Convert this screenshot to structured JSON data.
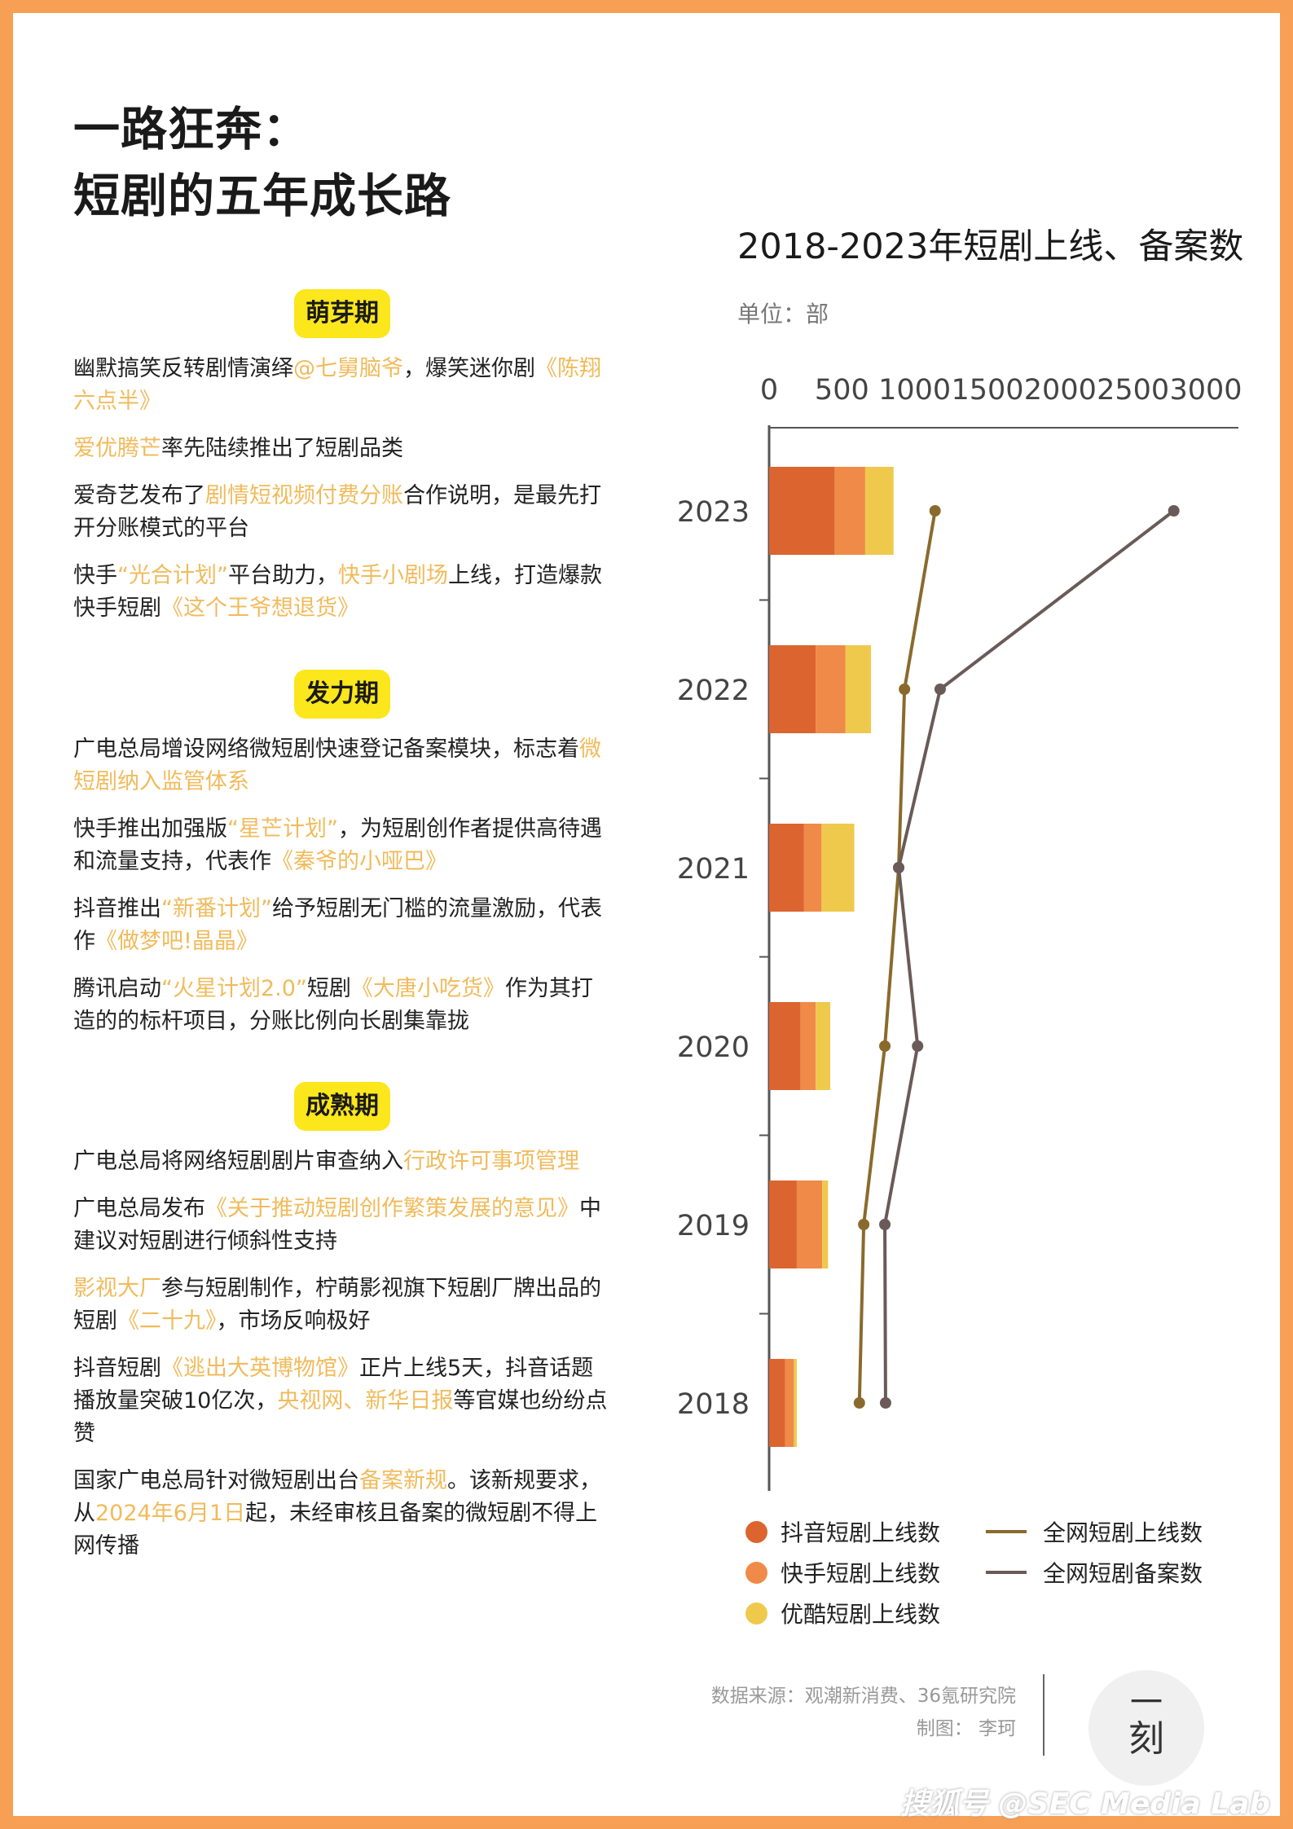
{
  "title": {
    "line1": "一路狂奔：",
    "line2": "短剧的五年成长路"
  },
  "sections": [
    {
      "label": "萌芽期",
      "items": [
        [
          {
            "t": "幽默搞笑反转剧情演绎"
          },
          {
            "t": "@七舅脑爷",
            "h": true
          },
          {
            "t": "，爆笑迷你剧"
          },
          {
            "t": "《陈翔六点半》",
            "h": true
          }
        ],
        [
          {
            "t": "爱优腾芒",
            "h": true
          },
          {
            "t": "率先陆续推出了短剧品类"
          }
        ],
        [
          {
            "t": "爱奇艺发布了"
          },
          {
            "t": "剧情短视频付费分账",
            "h": true
          },
          {
            "t": "合作说明，是最先打开分账模式的平台"
          }
        ],
        [
          {
            "t": "快手"
          },
          {
            "t": "“光合计划”",
            "h": true
          },
          {
            "t": "平台助力，"
          },
          {
            "t": "快手小剧场",
            "h": true
          },
          {
            "t": "上线，打造爆款快手短剧"
          },
          {
            "t": "《这个王爷想退货》",
            "h": true
          }
        ]
      ]
    },
    {
      "label": "发力期",
      "items": [
        [
          {
            "t": "广电总局增设网络微短剧快速登记备案模块，标志着"
          },
          {
            "t": "微短剧纳入监管体系",
            "h": true
          }
        ],
        [
          {
            "t": "快手推出加强版"
          },
          {
            "t": "“星芒计划”",
            "h": true
          },
          {
            "t": "，为短剧创作者提供高待遇和流量支持，代表作"
          },
          {
            "t": "《秦爷的小哑巴》",
            "h": true
          }
        ],
        [
          {
            "t": "抖音推出"
          },
          {
            "t": "“新番计划”",
            "h": true
          },
          {
            "t": "给予短剧无门槛的流量激励，代表作"
          },
          {
            "t": "《做梦吧!晶晶》",
            "h": true
          }
        ],
        [
          {
            "t": "腾讯启动"
          },
          {
            "t": "“火星计划2.0”",
            "h": true
          },
          {
            "t": "短剧"
          },
          {
            "t": "《大唐小吃货》",
            "h": true
          },
          {
            "t": "作为其打造的的标杆项目，分账比例向长剧集靠拢"
          }
        ]
      ]
    },
    {
      "label": "成熟期",
      "items": [
        [
          {
            "t": "广电总局将网络短剧剧片审查纳入"
          },
          {
            "t": "行政许可事项管理",
            "h": true
          }
        ],
        [
          {
            "t": "广电总局发布"
          },
          {
            "t": "《关于推动短剧创作繁策发展的意见》",
            "h": true
          },
          {
            "t": "中建议对短剧进行倾斜性支持"
          }
        ],
        [
          {
            "t": "影视大厂",
            "h": true
          },
          {
            "t": "参与短剧制作，柠萌影视旗下短剧厂牌出品的短剧"
          },
          {
            "t": "《二十九》",
            "h": true
          },
          {
            "t": "，市场反响极好"
          }
        ],
        [
          {
            "t": "抖音短剧"
          },
          {
            "t": "《逃出大英博物馆》",
            "h": true
          },
          {
            "t": "正片上线5天，抖音话题播放量突破10亿次，"
          },
          {
            "t": "央视网、新华日报",
            "h": true
          },
          {
            "t": "等官媒也纷纷点赞"
          }
        ],
        [
          {
            "t": "国家广电总局针对微短剧出台"
          },
          {
            "t": "备案新规",
            "h": true
          },
          {
            "t": "。该新规要求，从"
          },
          {
            "t": "2024年6月1日",
            "h": true
          },
          {
            "t": "起，未经审核且备案的微短剧不得上网传播"
          }
        ]
      ]
    }
  ],
  "chart_data": {
    "type": "bar",
    "orientation": "horizontal-stacked-with-lines",
    "title": "2018-2023年短剧上线、备案数",
    "unit": "单位：部",
    "xlim": [
      0,
      3000
    ],
    "ticks": [
      0,
      500,
      1000,
      1500,
      2000,
      2500,
      3000
    ],
    "categories": [
      "2023",
      "2022",
      "2021",
      "2020",
      "2019",
      "2018"
    ],
    "series": [
      {
        "name": "抖音短剧上线数",
        "type": "bar",
        "color": "#dc642e",
        "values": [
          450,
          320,
          240,
          215,
          190,
          110
        ]
      },
      {
        "name": "快手短剧上线数",
        "type": "bar",
        "color": "#f08a48",
        "values": [
          210,
          205,
          120,
          105,
          175,
          60
        ]
      },
      {
        "name": "优酷短剧上线数",
        "type": "bar",
        "color": "#eec94c",
        "values": [
          195,
          175,
          225,
          100,
          40,
          20
        ]
      },
      {
        "name": "全网短剧上线数",
        "type": "line",
        "color": "#8a6a2c",
        "values": [
          1140,
          930,
          890,
          795,
          650,
          620
        ]
      },
      {
        "name": "全网短剧备案数",
        "type": "line",
        "color": "#6a5a58",
        "values": [
          2780,
          1175,
          890,
          1020,
          795,
          800
        ]
      }
    ]
  },
  "footer": {
    "source": "数据来源：观潮新消费、36氪研究院",
    "maker": "制图：  李珂",
    "logo_top": "一",
    "logo_bottom": "刻",
    "watermark": "搜狐号 @SEC Media Lab"
  }
}
